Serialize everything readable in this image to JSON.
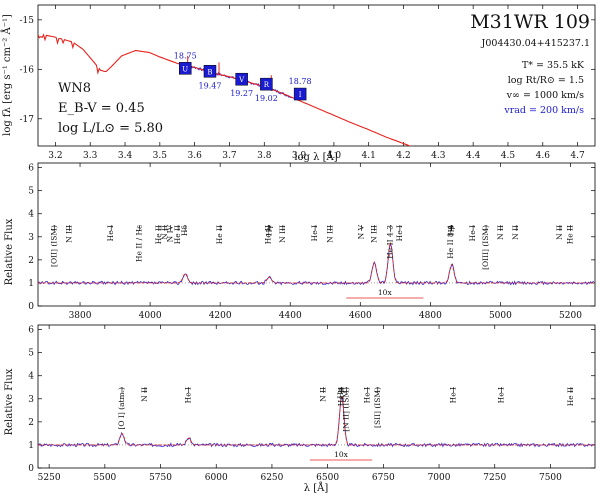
{
  "chart_data": [
    {
      "type": "line",
      "panel": "sed",
      "title": "M31WR 109",
      "subtitle": "J004430.04+415237.1",
      "xlabel": "log λ [Å]",
      "ylabel": "log fλ [erg s⁻¹ cm⁻² Å⁻¹]",
      "xlim": [
        3.15,
        4.75
      ],
      "ylim": [
        -17.55,
        -14.7
      ],
      "xticks": [
        "3.2",
        "3.3",
        "3.4",
        "3.5",
        "3.6",
        "3.7",
        "3.8",
        "3.9",
        "4.0",
        "4.1",
        "4.2",
        "4.3",
        "4.4",
        "4.5",
        "4.6",
        "4.7"
      ],
      "yticks": [
        "-15",
        "-16",
        "-17"
      ],
      "spectral_type": "WN8",
      "ebv_text": "E_B-V = 0.45",
      "lum_text": "log L/L⊙ = 5.80",
      "params": {
        "tstar": "T* = 35.5 kK",
        "rt": "log Rt/R⊙ = 1.5",
        "vinf": "v∞ = 1000 km/s",
        "vrad": "vrad = 200 km/s"
      },
      "model_line": [
        [
          3.15,
          -15.28
        ],
        [
          3.2,
          -15.35
        ],
        [
          3.25,
          -15.45
        ],
        [
          3.28,
          -15.6
        ],
        [
          3.31,
          -15.85
        ],
        [
          3.33,
          -16.02
        ],
        [
          3.345,
          -16.05
        ],
        [
          3.36,
          -15.95
        ],
        [
          3.39,
          -15.73
        ],
        [
          3.43,
          -15.62
        ],
        [
          3.47,
          -15.66
        ],
        [
          3.5,
          -15.75
        ],
        [
          3.55,
          -15.88
        ],
        [
          3.6,
          -15.96
        ],
        [
          3.65,
          -16.07
        ],
        [
          3.7,
          -16.15
        ],
        [
          3.75,
          -16.25
        ],
        [
          3.8,
          -16.35
        ],
        [
          3.85,
          -16.48
        ],
        [
          3.9,
          -16.63
        ],
        [
          3.95,
          -16.78
        ],
        [
          4.0,
          -16.93
        ],
        [
          4.05,
          -17.08
        ],
        [
          4.1,
          -17.22
        ],
        [
          4.15,
          -17.37
        ],
        [
          4.2,
          -17.5
        ],
        [
          4.23,
          -17.58
        ]
      ],
      "photometry": [
        {
          "band": "U",
          "x": 3.573,
          "y": -15.98,
          "label": "18.75",
          "label_pos": "above"
        },
        {
          "band": "B",
          "x": 3.644,
          "y": -16.04,
          "label": "19.47",
          "label_pos": "below"
        },
        {
          "band": "V",
          "x": 3.735,
          "y": -16.2,
          "label": "19.27",
          "label_pos": "below"
        },
        {
          "band": "R",
          "x": 3.806,
          "y": -16.3,
          "label": "19.02",
          "label_pos": "below"
        },
        {
          "band": "I",
          "x": 3.903,
          "y": -16.5,
          "label": "18.78",
          "label_pos": "above"
        }
      ],
      "colors": {
        "model": "#e8221c",
        "observed": "#2a2ad8",
        "box": "#1a1ad0"
      }
    },
    {
      "type": "line",
      "panel": "optical-blue",
      "xlabel": "",
      "ylabel": "Relative Flux",
      "xlim": [
        3680,
        5270
      ],
      "ylim": [
        0,
        6.2
      ],
      "xticks": [
        "3800",
        "4000",
        "4200",
        "4400",
        "4600",
        "4800",
        "5000",
        "5200"
      ],
      "yticks": [
        "0",
        "1",
        "2",
        "3",
        "4",
        "5",
        "6"
      ],
      "scale_label": "10x",
      "emission_lines": [
        {
          "x": 4100,
          "height": 0.4
        },
        {
          "x": 4340,
          "height": 0.25
        },
        {
          "x": 4640,
          "height": 0.9
        },
        {
          "x": 4686,
          "height": 1.75
        },
        {
          "x": 4861,
          "height": 0.8
        }
      ],
      "line_ids": [
        {
          "label": "[OII] (ISM)",
          "x": 3727
        },
        {
          "label": "N III",
          "x": 3770
        },
        {
          "label": "He I",
          "x": 3889
        },
        {
          "label": "He II / Hε",
          "x": 3970
        },
        {
          "label": "He II",
          "x": 4025
        },
        {
          "label": "N II",
          "x": 4042
        },
        {
          "label": "N IV",
          "x": 4058
        },
        {
          "label": "He II",
          "x": 4080
        },
        {
          "label": "Hδ",
          "x": 4100
        },
        {
          "label": "He II",
          "x": 4200
        },
        {
          "label": "He II",
          "x": 4338
        },
        {
          "label": "Hγ",
          "x": 4341
        },
        {
          "label": "N III",
          "x": 4379
        },
        {
          "label": "He I",
          "x": 4471
        },
        {
          "label": "N III",
          "x": 4515
        },
        {
          "label": "N V",
          "x": 4604
        },
        {
          "label": "N III",
          "x": 4640
        },
        {
          "label": "He II 4-3",
          "x": 4686
        },
        {
          "label": "He I",
          "x": 4713
        },
        {
          "label": "He II 8-4",
          "x": 4859
        },
        {
          "label": "Hβ",
          "x": 4861
        },
        {
          "label": "He I",
          "x": 4922
        },
        {
          "label": "[OIII] (ISM)",
          "x": 4959
        },
        {
          "label": "N II",
          "x": 5001
        },
        {
          "label": "N II",
          "x": 5045
        },
        {
          "label": "N II",
          "x": 5170
        },
        {
          "label": "He II",
          "x": 5200
        }
      ]
    },
    {
      "type": "line",
      "panel": "optical-red",
      "xlabel": "λ [Å]",
      "ylabel": "Relative Flux",
      "xlim": [
        5200,
        7700
      ],
      "ylim": [
        0,
        6.2
      ],
      "xticks": [
        "5250",
        "5500",
        "5750",
        "6000",
        "6250",
        "6500",
        "6750",
        "7000",
        "7250",
        "7500"
      ],
      "yticks": [
        "0",
        "1",
        "2",
        "3",
        "4",
        "5",
        "6"
      ],
      "scale_label": "10x",
      "emission_lines": [
        {
          "x": 5577,
          "height": 0.5
        },
        {
          "x": 5876,
          "height": 0.3
        },
        {
          "x": 6563,
          "height": 2.1
        }
      ],
      "line_ids": [
        {
          "label": "[O I] (atm.)",
          "x": 5577
        },
        {
          "label": "N II",
          "x": 5680
        },
        {
          "label": "He I",
          "x": 5876
        },
        {
          "label": "N II",
          "x": 6482
        },
        {
          "label": "Hα",
          "x": 6560
        },
        {
          "label": "He II",
          "x": 6563
        },
        {
          "label": "[N II] (ISM)",
          "x": 6584
        },
        {
          "label": "He I",
          "x": 6678
        },
        {
          "label": "[SII] (ISM)",
          "x": 6725
        },
        {
          "label": "He I",
          "x": 7065
        },
        {
          "label": "He I",
          "x": 7281
        },
        {
          "label": "He II",
          "x": 7592
        }
      ]
    }
  ]
}
